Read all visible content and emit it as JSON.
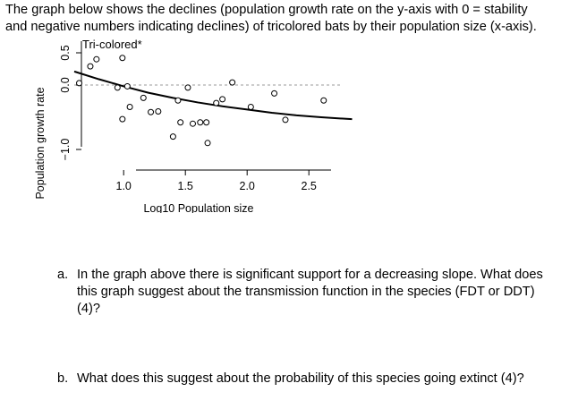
{
  "intro": {
    "line1": "The graph below shows the declines (population growth rate on the y-axis with 0 = stability",
    "line2": "and negative numbers indicating declines) of tricolored bats by their population size (x-axis)."
  },
  "chart_data": {
    "type": "scatter",
    "title": "Tri-colored*",
    "xlabel": "Log10 Population size",
    "ylabel": "Population growth rate",
    "xlim": [
      0.6,
      2.85
    ],
    "ylim": [
      -1.3,
      0.55
    ],
    "xticks": [
      "1.0",
      "1.5",
      "2.0",
      "2.5"
    ],
    "yticks": [
      "-1.0",
      "0.0",
      "0.5"
    ],
    "reference_line_y": 0,
    "reference_line_style": "dashed",
    "grid": false,
    "legend": "none",
    "points": [
      [
        0.64,
        0.03
      ],
      [
        0.73,
        0.29
      ],
      [
        0.78,
        0.4
      ],
      [
        0.95,
        -0.04
      ],
      [
        0.99,
        -0.53
      ],
      [
        0.99,
        0.42
      ],
      [
        1.03,
        -0.02
      ],
      [
        1.05,
        -0.34
      ],
      [
        1.16,
        -0.2
      ],
      [
        1.22,
        -0.42
      ],
      [
        1.28,
        -0.41
      ],
      [
        1.4,
        -0.8
      ],
      [
        1.44,
        -0.24
      ],
      [
        1.46,
        -0.58
      ],
      [
        1.52,
        -0.04
      ],
      [
        1.56,
        -0.6
      ],
      [
        1.62,
        -0.58
      ],
      [
        1.67,
        -0.58
      ],
      [
        1.68,
        -0.9
      ],
      [
        1.75,
        -0.28
      ],
      [
        1.8,
        -0.22
      ],
      [
        1.88,
        0.04
      ],
      [
        2.03,
        -0.34
      ],
      [
        2.22,
        -0.13
      ],
      [
        2.31,
        -0.54
      ],
      [
        2.62,
        -0.24
      ]
    ],
    "fit_line": [
      [
        0.6,
        0.21
      ],
      [
        0.8,
        0.09
      ],
      [
        1.0,
        -0.02
      ],
      [
        1.2,
        -0.12
      ],
      [
        1.4,
        -0.2
      ],
      [
        1.6,
        -0.27
      ],
      [
        1.8,
        -0.33
      ],
      [
        2.0,
        -0.38
      ],
      [
        2.2,
        -0.43
      ],
      [
        2.4,
        -0.47
      ],
      [
        2.6,
        -0.5
      ],
      [
        2.85,
        -0.53
      ]
    ]
  },
  "questions": {
    "a_label": "a.",
    "a_text": "In the graph above there is significant support for a decreasing slope. What does this graph suggest about the transmission function in the species (FDT or DDT) (4)?",
    "b_label": "b.",
    "b_text": "What does this suggest about the probability of this species going extinct (4)?"
  }
}
